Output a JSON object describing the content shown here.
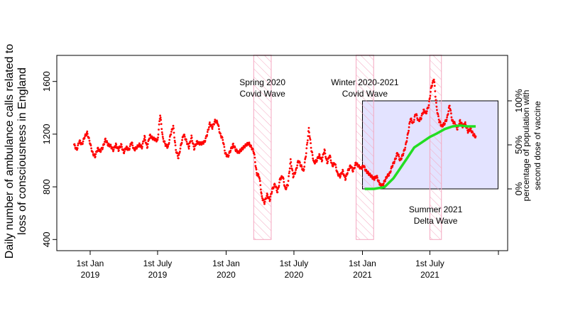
{
  "chart_data": {
    "type": "scatter",
    "title": "",
    "ylabel_line1": "Daily number of ambulance calls related to",
    "ylabel_line2": "loss of consciousness in England",
    "y2label_line1": "percentage of population with",
    "y2label_line2": "second dose of vaccine",
    "ylim": [
      400,
      1800
    ],
    "y_ticks": [
      400,
      800,
      1200,
      1600
    ],
    "y2_ticks": [
      {
        "value": 0,
        "label": "0%"
      },
      {
        "value": 50,
        "label": "50%"
      },
      {
        "value": 100,
        "label": "100%"
      }
    ],
    "x_ticks": [
      {
        "date": "2019-01-01",
        "line1": "1st Jan",
        "line2": "2019"
      },
      {
        "date": "2019-07-01",
        "line1": "1st July",
        "line2": "2019"
      },
      {
        "date": "2020-01-01",
        "line1": "1st Jan",
        "line2": "2020"
      },
      {
        "date": "2020-07-01",
        "line1": "1st July",
        "line2": "2020"
      },
      {
        "date": "2021-01-01",
        "line1": "1st Jan",
        "line2": "2021"
      },
      {
        "date": "2021-07-01",
        "line1": "1st July",
        "line2": "2021"
      }
    ],
    "waves": [
      {
        "start": "2020-03-15",
        "end": "2020-05-01",
        "line1": "Spring 2020",
        "line2": "Covid Wave",
        "label_pos": "top"
      },
      {
        "start": "2020-12-15",
        "end": "2021-01-31",
        "line1": "Winter 2020-2021",
        "line2": "Covid Wave",
        "label_pos": "top"
      },
      {
        "start": "2021-07-01",
        "end": "2021-08-01",
        "line1": "Summer 2021",
        "line2": "Delta Wave",
        "label_pos": "bottom"
      }
    ],
    "vaccine_box": {
      "start": "2021-01-01",
      "end": "2021-12-31"
    },
    "series": [
      {
        "kind": "calls",
        "points": [
          [
            "2018-11-19",
            1120
          ],
          [
            "2018-11-26",
            1080
          ],
          [
            "2018-12-03",
            1150
          ],
          [
            "2018-12-10",
            1120
          ],
          [
            "2018-12-17",
            1180
          ],
          [
            "2018-12-24",
            1210
          ],
          [
            "2018-12-31",
            1140
          ],
          [
            "2019-01-07",
            1060
          ],
          [
            "2019-01-14",
            1030
          ],
          [
            "2019-01-21",
            1090
          ],
          [
            "2019-01-28",
            1070
          ],
          [
            "2019-02-04",
            1100
          ],
          [
            "2019-02-11",
            1160
          ],
          [
            "2019-02-18",
            1120
          ],
          [
            "2019-02-25",
            1110
          ],
          [
            "2019-03-04",
            1080
          ],
          [
            "2019-03-11",
            1120
          ],
          [
            "2019-03-18",
            1080
          ],
          [
            "2019-03-25",
            1120
          ],
          [
            "2019-04-01",
            1060
          ],
          [
            "2019-04-08",
            1100
          ],
          [
            "2019-04-15",
            1080
          ],
          [
            "2019-04-22",
            1140
          ],
          [
            "2019-04-29",
            1080
          ],
          [
            "2019-05-06",
            1100
          ],
          [
            "2019-05-13",
            1120
          ],
          [
            "2019-05-20",
            1100
          ],
          [
            "2019-05-27",
            1180
          ],
          [
            "2019-06-03",
            1100
          ],
          [
            "2019-06-10",
            1190
          ],
          [
            "2019-06-17",
            1170
          ],
          [
            "2019-06-24",
            1160
          ],
          [
            "2019-07-01",
            1150
          ],
          [
            "2019-07-08",
            1350
          ],
          [
            "2019-07-15",
            1170
          ],
          [
            "2019-07-22",
            1120
          ],
          [
            "2019-07-29",
            1100
          ],
          [
            "2019-08-05",
            1200
          ],
          [
            "2019-08-12",
            1260
          ],
          [
            "2019-08-19",
            1080
          ],
          [
            "2019-08-26",
            1020
          ],
          [
            "2019-09-02",
            1120
          ],
          [
            "2019-09-09",
            1200
          ],
          [
            "2019-09-16",
            1150
          ],
          [
            "2019-09-23",
            1100
          ],
          [
            "2019-09-30",
            1180
          ],
          [
            "2019-10-07",
            1090
          ],
          [
            "2019-10-14",
            1140
          ],
          [
            "2019-10-21",
            1130
          ],
          [
            "2019-10-28",
            1130
          ],
          [
            "2019-11-04",
            1140
          ],
          [
            "2019-11-11",
            1200
          ],
          [
            "2019-11-18",
            1280
          ],
          [
            "2019-11-25",
            1250
          ],
          [
            "2019-12-02",
            1300
          ],
          [
            "2019-12-09",
            1290
          ],
          [
            "2019-12-16",
            1200
          ],
          [
            "2019-12-23",
            1160
          ],
          [
            "2019-12-30",
            1050
          ],
          [
            "2020-01-06",
            1030
          ],
          [
            "2020-01-13",
            1080
          ],
          [
            "2020-01-20",
            1120
          ],
          [
            "2020-01-27",
            1080
          ],
          [
            "2020-02-03",
            1060
          ],
          [
            "2020-02-10",
            1080
          ],
          [
            "2020-02-17",
            1100
          ],
          [
            "2020-02-24",
            1120
          ],
          [
            "2020-03-02",
            1130
          ],
          [
            "2020-03-09",
            1100
          ],
          [
            "2020-03-16",
            1060
          ],
          [
            "2020-03-23",
            900
          ],
          [
            "2020-03-30",
            880
          ],
          [
            "2020-04-06",
            720
          ],
          [
            "2020-04-13",
            680
          ],
          [
            "2020-04-20",
            740
          ],
          [
            "2020-04-27",
            700
          ],
          [
            "2020-05-04",
            780
          ],
          [
            "2020-05-11",
            820
          ],
          [
            "2020-05-18",
            760
          ],
          [
            "2020-05-25",
            860
          ],
          [
            "2020-06-01",
            880
          ],
          [
            "2020-06-08",
            780
          ],
          [
            "2020-06-15",
            820
          ],
          [
            "2020-06-22",
            1000
          ],
          [
            "2020-06-29",
            880
          ],
          [
            "2020-07-06",
            920
          ],
          [
            "2020-07-13",
            1000
          ],
          [
            "2020-07-20",
            960
          ],
          [
            "2020-07-27",
            920
          ],
          [
            "2020-08-03",
            1060
          ],
          [
            "2020-08-10",
            1240
          ],
          [
            "2020-08-17",
            1080
          ],
          [
            "2020-08-24",
            980
          ],
          [
            "2020-08-31",
            1000
          ],
          [
            "2020-09-07",
            1040
          ],
          [
            "2020-09-14",
            1000
          ],
          [
            "2020-09-21",
            1080
          ],
          [
            "2020-09-28",
            980
          ],
          [
            "2020-10-05",
            1040
          ],
          [
            "2020-10-12",
            960
          ],
          [
            "2020-10-19",
            980
          ],
          [
            "2020-10-26",
            900
          ],
          [
            "2020-11-02",
            880
          ],
          [
            "2020-11-09",
            920
          ],
          [
            "2020-11-16",
            860
          ],
          [
            "2020-11-23",
            920
          ],
          [
            "2020-11-30",
            960
          ],
          [
            "2020-12-07",
            920
          ],
          [
            "2020-12-14",
            980
          ],
          [
            "2020-12-21",
            960
          ],
          [
            "2020-12-28",
            940
          ],
          [
            "2021-01-04",
            960
          ],
          [
            "2021-01-11",
            920
          ],
          [
            "2021-01-18",
            900
          ],
          [
            "2021-01-25",
            880
          ],
          [
            "2021-02-01",
            860
          ],
          [
            "2021-02-08",
            880
          ],
          [
            "2021-02-15",
            830
          ],
          [
            "2021-02-22",
            800
          ],
          [
            "2021-03-01",
            840
          ],
          [
            "2021-03-08",
            880
          ],
          [
            "2021-03-15",
            900
          ],
          [
            "2021-03-22",
            960
          ],
          [
            "2021-03-29",
            1000
          ],
          [
            "2021-04-05",
            1060
          ],
          [
            "2021-04-12",
            1000
          ],
          [
            "2021-04-19",
            1040
          ],
          [
            "2021-04-26",
            1100
          ],
          [
            "2021-05-03",
            1200
          ],
          [
            "2021-05-10",
            1320
          ],
          [
            "2021-05-17",
            1280
          ],
          [
            "2021-05-24",
            1360
          ],
          [
            "2021-05-31",
            1300
          ],
          [
            "2021-06-07",
            1320
          ],
          [
            "2021-06-14",
            1380
          ],
          [
            "2021-06-21",
            1360
          ],
          [
            "2021-06-28",
            1420
          ],
          [
            "2021-07-05",
            1560
          ],
          [
            "2021-07-12",
            1620
          ],
          [
            "2021-07-19",
            1400
          ],
          [
            "2021-07-26",
            1300
          ],
          [
            "2021-08-02",
            1260
          ],
          [
            "2021-08-09",
            1280
          ],
          [
            "2021-08-16",
            1320
          ],
          [
            "2021-08-23",
            1420
          ],
          [
            "2021-08-30",
            1300
          ],
          [
            "2021-09-06",
            1280
          ],
          [
            "2021-09-13",
            1240
          ],
          [
            "2021-09-20",
            1300
          ],
          [
            "2021-09-27",
            1260
          ],
          [
            "2021-10-04",
            1280
          ],
          [
            "2021-10-11",
            1220
          ],
          [
            "2021-10-18",
            1240
          ],
          [
            "2021-10-25",
            1200
          ],
          [
            "2021-11-01",
            1180
          ]
        ]
      },
      {
        "kind": "vaccine_percent",
        "points": [
          [
            "2021-01-07",
            0
          ],
          [
            "2021-02-01",
            0
          ],
          [
            "2021-03-01",
            2
          ],
          [
            "2021-03-25",
            12
          ],
          [
            "2021-04-15",
            25
          ],
          [
            "2021-05-01",
            35
          ],
          [
            "2021-05-20",
            47
          ],
          [
            "2021-06-10",
            53
          ],
          [
            "2021-07-01",
            59
          ],
          [
            "2021-07-20",
            63
          ],
          [
            "2021-08-10",
            68
          ],
          [
            "2021-08-31",
            71
          ],
          [
            "2021-09-20",
            72
          ],
          [
            "2021-10-10",
            71
          ],
          [
            "2021-11-01",
            71
          ]
        ]
      }
    ]
  }
}
